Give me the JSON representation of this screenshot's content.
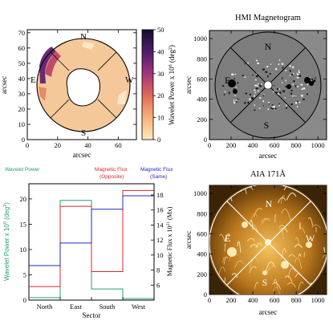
{
  "chart_data": [
    {
      "type": "heatmap",
      "title": "",
      "xlabel": "arcsec",
      "ylabel": "arcsec",
      "xlim": [
        0,
        72
      ],
      "ylim": [
        0,
        72
      ],
      "xticks": [
        "0",
        "20",
        "40",
        "60"
      ],
      "yticks": [
        "0",
        "10",
        "20",
        "30",
        "40",
        "50",
        "60",
        "70"
      ],
      "sector_labels": {
        "north": "N",
        "east": "E",
        "south": "S",
        "west": "W"
      },
      "colorbar": {
        "label": "Wavelet Power x 10",
        "label_exp": "6",
        "label_unit": "(deg",
        "label_unit_exp": "2",
        "label_close": ")",
        "range": [
          0,
          50
        ],
        "ticks": [
          "0",
          "10",
          "20",
          "30",
          "40",
          "50"
        ],
        "colors": [
          "#fce9c0",
          "#f6b27a",
          "#e06b58",
          "#a2347a",
          "#4b1f6b",
          "#180b2e"
        ]
      }
    },
    {
      "type": "heatmap",
      "title": "HMI Magnetogram",
      "xlabel": "arcsec",
      "ylabel": "arcsec",
      "xlim": [
        0,
        1080
      ],
      "ylim": [
        0,
        1080
      ],
      "xticks": [
        "0",
        "200",
        "400",
        "600",
        "800",
        "1000"
      ],
      "yticks": [
        "0",
        "200",
        "400",
        "600",
        "800",
        "1000"
      ],
      "sector_labels": {
        "north": "N",
        "east": "E",
        "south": "S",
        "west": "W"
      }
    },
    {
      "type": "line",
      "header_labels": {
        "left": "Wavelet Power",
        "middle": "Magnetic Flux",
        "middle_sub": "(Opposite)",
        "right": "Magnetic Flux",
        "right_sub": "(Same)"
      },
      "categories": [
        "North",
        "East",
        "South",
        "West"
      ],
      "xlabel": "Sector",
      "ylabel_left": "Wavelet Power x 10",
      "ylabel_left_exp": "9",
      "ylabel_left_unit": "(deg",
      "ylabel_left_unit_exp": "2",
      "ylabel_left_close": ")",
      "ylabel_right": "Magnetic Flux x 10",
      "ylabel_right_exp": "21",
      "ylabel_right_unit": "(Mx)",
      "ylim_left": [
        0,
        23
      ],
      "yticks_left": [
        "0",
        "5",
        "10",
        "15",
        "20"
      ],
      "ylim_right": [
        4,
        19.5
      ],
      "yticks_right": [
        "6",
        "8",
        "10",
        "12",
        "14",
        "16",
        "18"
      ],
      "series": [
        {
          "name": "Wavelet Power",
          "axis": "left",
          "color": "#1fa16e",
          "values": [
            0.5,
            19.7,
            2.2,
            0.3
          ]
        },
        {
          "name": "Magnetic Flux (Opposite)",
          "axis": "right",
          "color": "#d8262b",
          "values": [
            5.8,
            16.5,
            7.8,
            18.6
          ]
        },
        {
          "name": "Magnetic Flux (Same)",
          "axis": "right",
          "color": "#2126c7",
          "values": [
            8.6,
            11.6,
            16.1,
            17.9
          ]
        }
      ]
    },
    {
      "type": "heatmap",
      "title": "AIA 171Å",
      "xlabel": "arcsec",
      "ylabel": "arcsec",
      "xlim": [
        0,
        1080
      ],
      "ylim": [
        0,
        1080
      ],
      "xticks": [
        "0",
        "200",
        "400",
        "600",
        "800",
        "1000"
      ],
      "yticks": [
        "0",
        "200",
        "400",
        "600",
        "800",
        "1000"
      ],
      "sector_labels": {
        "north": "N",
        "east": "E",
        "south": "S",
        "west": "W"
      }
    }
  ]
}
